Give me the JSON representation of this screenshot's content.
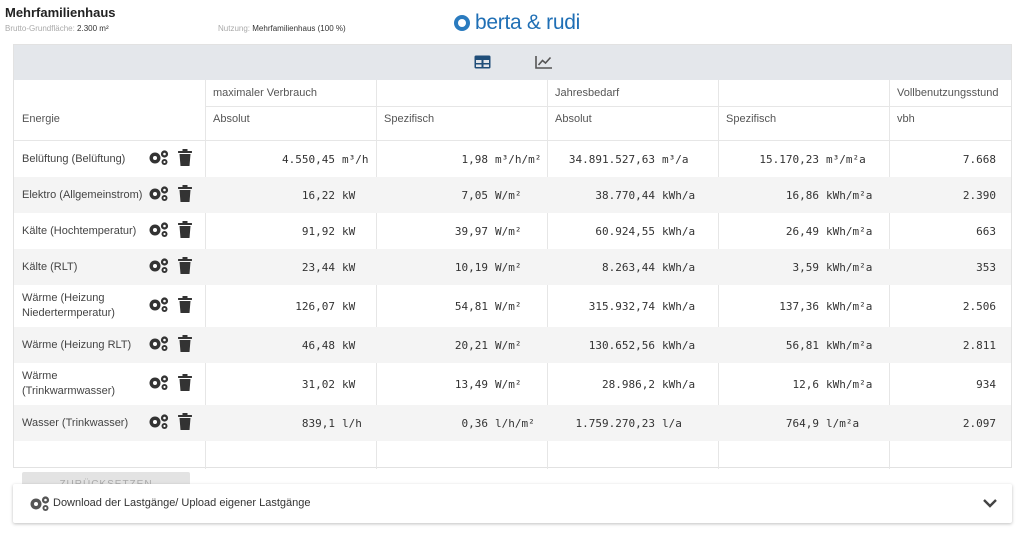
{
  "header": {
    "title": "Mehrfamilienhaus",
    "area_label": "Brutto-Grundfläche:",
    "area_value": "2.300 m²",
    "usage_label": "Nutzung:",
    "usage_value": "Mehrfamilienhaus (100 %)",
    "logo_text": "berta & rudi"
  },
  "toolbar": {
    "table_icon": "table-icon",
    "chart_icon": "line-chart-icon",
    "accent": "#1f4e79"
  },
  "table": {
    "group_headers": [
      "maximaler Verbrauch",
      "Jahresbedarf",
      "Vollbenutzungsstund"
    ],
    "sub_headers": [
      "Energie",
      "Absolut",
      "Spezifisch",
      "Absolut",
      "Spezifisch",
      "vbh"
    ],
    "rows": [
      {
        "name": "Belüftung (Belüftung)",
        "max_abs": "4.550,45",
        "max_abs_unit": "m³/h",
        "max_spec": "1,98",
        "max_spec_unit": "m³/h/m²",
        "jb_abs": "34.891.527,63",
        "jb_abs_unit": "m³/a",
        "jb_spec": "15.170,23",
        "jb_spec_unit": "m³/m²a",
        "vbh": "7.668"
      },
      {
        "name": "Elektro (Allgemeinstrom)",
        "max_abs": "16,22",
        "max_abs_unit": "kW",
        "max_spec": "7,05",
        "max_spec_unit": "W/m²",
        "jb_abs": "38.770,44",
        "jb_abs_unit": "kWh/a",
        "jb_spec": "16,86",
        "jb_spec_unit": "kWh/m²a",
        "vbh": "2.390"
      },
      {
        "name": "Kälte (Hochtemperatur)",
        "max_abs": "91,92",
        "max_abs_unit": "kW",
        "max_spec": "39,97",
        "max_spec_unit": "W/m²",
        "jb_abs": "60.924,55",
        "jb_abs_unit": "kWh/a",
        "jb_spec": "26,49",
        "jb_spec_unit": "kWh/m²a",
        "vbh": "663"
      },
      {
        "name": "Kälte (RLT)",
        "max_abs": "23,44",
        "max_abs_unit": "kW",
        "max_spec": "10,19",
        "max_spec_unit": "W/m²",
        "jb_abs": "8.263,44",
        "jb_abs_unit": "kWh/a",
        "jb_spec": "3,59",
        "jb_spec_unit": "kWh/m²a",
        "vbh": "353"
      },
      {
        "name": "Wärme (Heizung Niedertermperatur)",
        "max_abs": "126,07",
        "max_abs_unit": "kW",
        "max_spec": "54,81",
        "max_spec_unit": "W/m²",
        "jb_abs": "315.932,74",
        "jb_abs_unit": "kWh/a",
        "jb_spec": "137,36",
        "jb_spec_unit": "kWh/m²a",
        "vbh": "2.506"
      },
      {
        "name": "Wärme (Heizung RLT)",
        "max_abs": "46,48",
        "max_abs_unit": "kW",
        "max_spec": "20,21",
        "max_spec_unit": "W/m²",
        "jb_abs": "130.652,56",
        "jb_abs_unit": "kWh/a",
        "jb_spec": "56,81",
        "jb_spec_unit": "kWh/m²a",
        "vbh": "2.811"
      },
      {
        "name": "Wärme (Trinkwarmwasser)",
        "max_abs": "31,02",
        "max_abs_unit": "kW",
        "max_spec": "13,49",
        "max_spec_unit": "W/m²",
        "jb_abs": "28.986,2",
        "jb_abs_unit": "kWh/a",
        "jb_spec": "12,6",
        "jb_spec_unit": "kWh/m²a",
        "vbh": "934"
      },
      {
        "name": "Wasser (Trinkwasser)",
        "max_abs": "839,1",
        "max_abs_unit": "l/h",
        "max_spec": "0,36",
        "max_spec_unit": "l/h/m²",
        "jb_abs": "1.759.270,23",
        "jb_abs_unit": "l/a",
        "jb_spec": "764,9",
        "jb_spec_unit": "l/m²a",
        "vbh": "2.097"
      }
    ],
    "reset_label": "ZURÜCKSETZEN"
  },
  "accordion": {
    "label": "Download der Lastgänge/ Upload eigener Lastgänge",
    "icon": "gears-icon",
    "chevron": "chevron-down-icon"
  }
}
